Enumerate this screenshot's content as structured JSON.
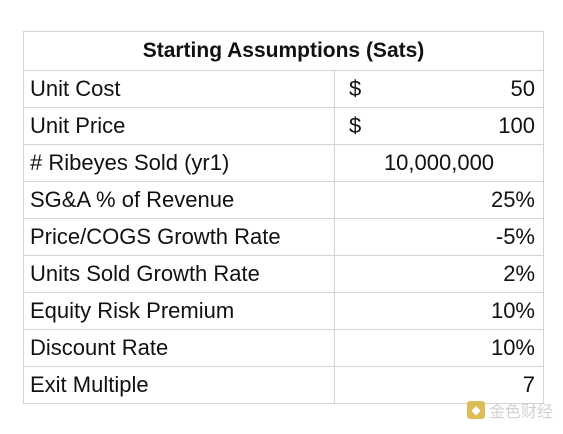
{
  "table": {
    "title": "Starting Assumptions (Sats)",
    "rows": [
      {
        "label": "Unit Cost",
        "currency": "$",
        "value": "50"
      },
      {
        "label": "Unit Price",
        "currency": "$",
        "value": "100"
      },
      {
        "label": "# Ribeyes Sold (yr1)",
        "currency": "",
        "value": "10,000,000"
      },
      {
        "label": "SG&A % of Revenue",
        "currency": "",
        "value": "25%"
      },
      {
        "label": "Price/COGS Growth Rate",
        "currency": "",
        "value": "-5%"
      },
      {
        "label": "Units Sold Growth Rate",
        "currency": "",
        "value": "2%"
      },
      {
        "label": "Equity Risk Premium",
        "currency": "",
        "value": "10%"
      },
      {
        "label": "Discount Rate",
        "currency": "",
        "value": "10%"
      },
      {
        "label": "Exit Multiple",
        "currency": "",
        "value": "7"
      }
    ]
  },
  "watermark": {
    "text": "金色财经"
  }
}
